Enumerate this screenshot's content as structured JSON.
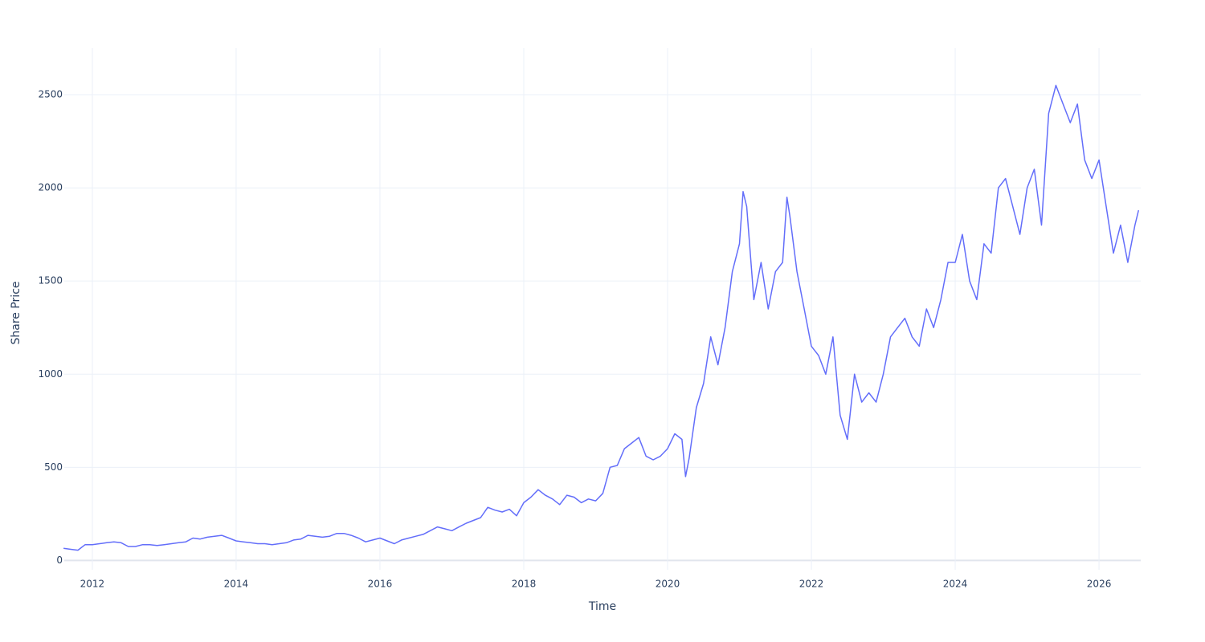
{
  "chart_data": {
    "type": "line",
    "x_label": "Time",
    "y_label": "Share Price",
    "x": [
      2011.6,
      2011.7,
      2011.8,
      2011.9,
      2012.0,
      2012.1,
      2012.2,
      2012.3,
      2012.4,
      2012.5,
      2012.6,
      2012.7,
      2012.8,
      2012.9,
      2013.0,
      2013.1,
      2013.2,
      2013.3,
      2013.4,
      2013.5,
      2013.6,
      2013.7,
      2013.8,
      2013.9,
      2014.0,
      2014.1,
      2014.2,
      2014.3,
      2014.4,
      2014.5,
      2014.6,
      2014.7,
      2014.8,
      2014.9,
      2015.0,
      2015.1,
      2015.2,
      2015.3,
      2015.4,
      2015.5,
      2015.6,
      2015.7,
      2015.8,
      2015.9,
      2016.0,
      2016.1,
      2016.2,
      2016.3,
      2016.4,
      2016.5,
      2016.6,
      2016.7,
      2016.8,
      2016.9,
      2017.0,
      2017.1,
      2017.2,
      2017.3,
      2017.4,
      2017.5,
      2017.6,
      2017.7,
      2017.8,
      2017.9,
      2018.0,
      2018.1,
      2018.2,
      2018.3,
      2018.4,
      2018.5,
      2018.6,
      2018.7,
      2018.8,
      2018.9,
      2019.0,
      2019.1,
      2019.2,
      2019.3,
      2019.4,
      2019.5,
      2019.6,
      2019.7,
      2019.8,
      2019.9,
      2020.0,
      2020.1,
      2020.2,
      2020.25,
      2020.3,
      2020.4,
      2020.5,
      2020.6,
      2020.7,
      2020.8,
      2020.9,
      2021.0,
      2021.05,
      2021.1,
      2021.2,
      2021.3,
      2021.4,
      2021.5,
      2021.6,
      2021.66,
      2021.7,
      2021.8,
      2021.9,
      2022.0,
      2022.1,
      2022.2,
      2022.3,
      2022.4,
      2022.5,
      2022.6,
      2022.7,
      2022.8,
      2022.9,
      2023.0,
      2023.1,
      2023.2,
      2023.3,
      2023.4,
      2023.5,
      2023.6,
      2023.7,
      2023.8,
      2023.9,
      2024.0,
      2024.1,
      2024.2,
      2024.3,
      2024.4,
      2024.5,
      2024.6,
      2024.7,
      2024.8,
      2024.9,
      2025.0,
      2025.1,
      2025.2,
      2025.3,
      2025.4,
      2025.5,
      2025.6,
      2025.7,
      2025.8,
      2025.9,
      2026.0,
      2026.1,
      2026.2,
      2026.3,
      2026.4,
      2026.5,
      2026.55
    ],
    "values": [
      65,
      60,
      55,
      85,
      85,
      90,
      95,
      100,
      95,
      75,
      75,
      85,
      85,
      80,
      85,
      90,
      95,
      100,
      120,
      115,
      125,
      130,
      135,
      120,
      105,
      100,
      95,
      90,
      90,
      85,
      90,
      95,
      110,
      115,
      135,
      130,
      125,
      130,
      145,
      145,
      135,
      120,
      100,
      110,
      120,
      105,
      90,
      110,
      120,
      130,
      140,
      160,
      180,
      170,
      160,
      180,
      200,
      215,
      230,
      285,
      270,
      260,
      275,
      240,
      310,
      340,
      380,
      350,
      330,
      300,
      350,
      340,
      310,
      330,
      320,
      360,
      500,
      510,
      600,
      630,
      660,
      560,
      540,
      560,
      600,
      680,
      650,
      450,
      550,
      820,
      950,
      1200,
      1050,
      1250,
      1550,
      1700,
      1980,
      1900,
      1400,
      1600,
      1350,
      1550,
      1600,
      1950,
      1850,
      1550,
      1350,
      1150,
      1100,
      1000,
      1200,
      780,
      650,
      1000,
      850,
      900,
      850,
      1000,
      1200,
      1250,
      1300,
      1200,
      1150,
      1350,
      1250,
      1400,
      1600,
      1600,
      1750,
      1500,
      1400,
      1700,
      1650,
      2000,
      2050,
      1900,
      1750,
      2000,
      2100,
      1800,
      2400,
      2550,
      2450,
      2350,
      2450,
      2150,
      2050,
      2150,
      1900,
      1650,
      1800,
      1600,
      1800,
      1880
    ],
    "color": "#636efa",
    "xlim": [
      2011.61,
      2026.58
    ],
    "xticks": [
      2012,
      2014,
      2016,
      2018,
      2020,
      2022,
      2024,
      2026
    ],
    "ylim": [
      -50,
      2750
    ],
    "yticks": [
      0,
      500,
      1000,
      1500,
      2000,
      2500
    ],
    "grid": true
  }
}
